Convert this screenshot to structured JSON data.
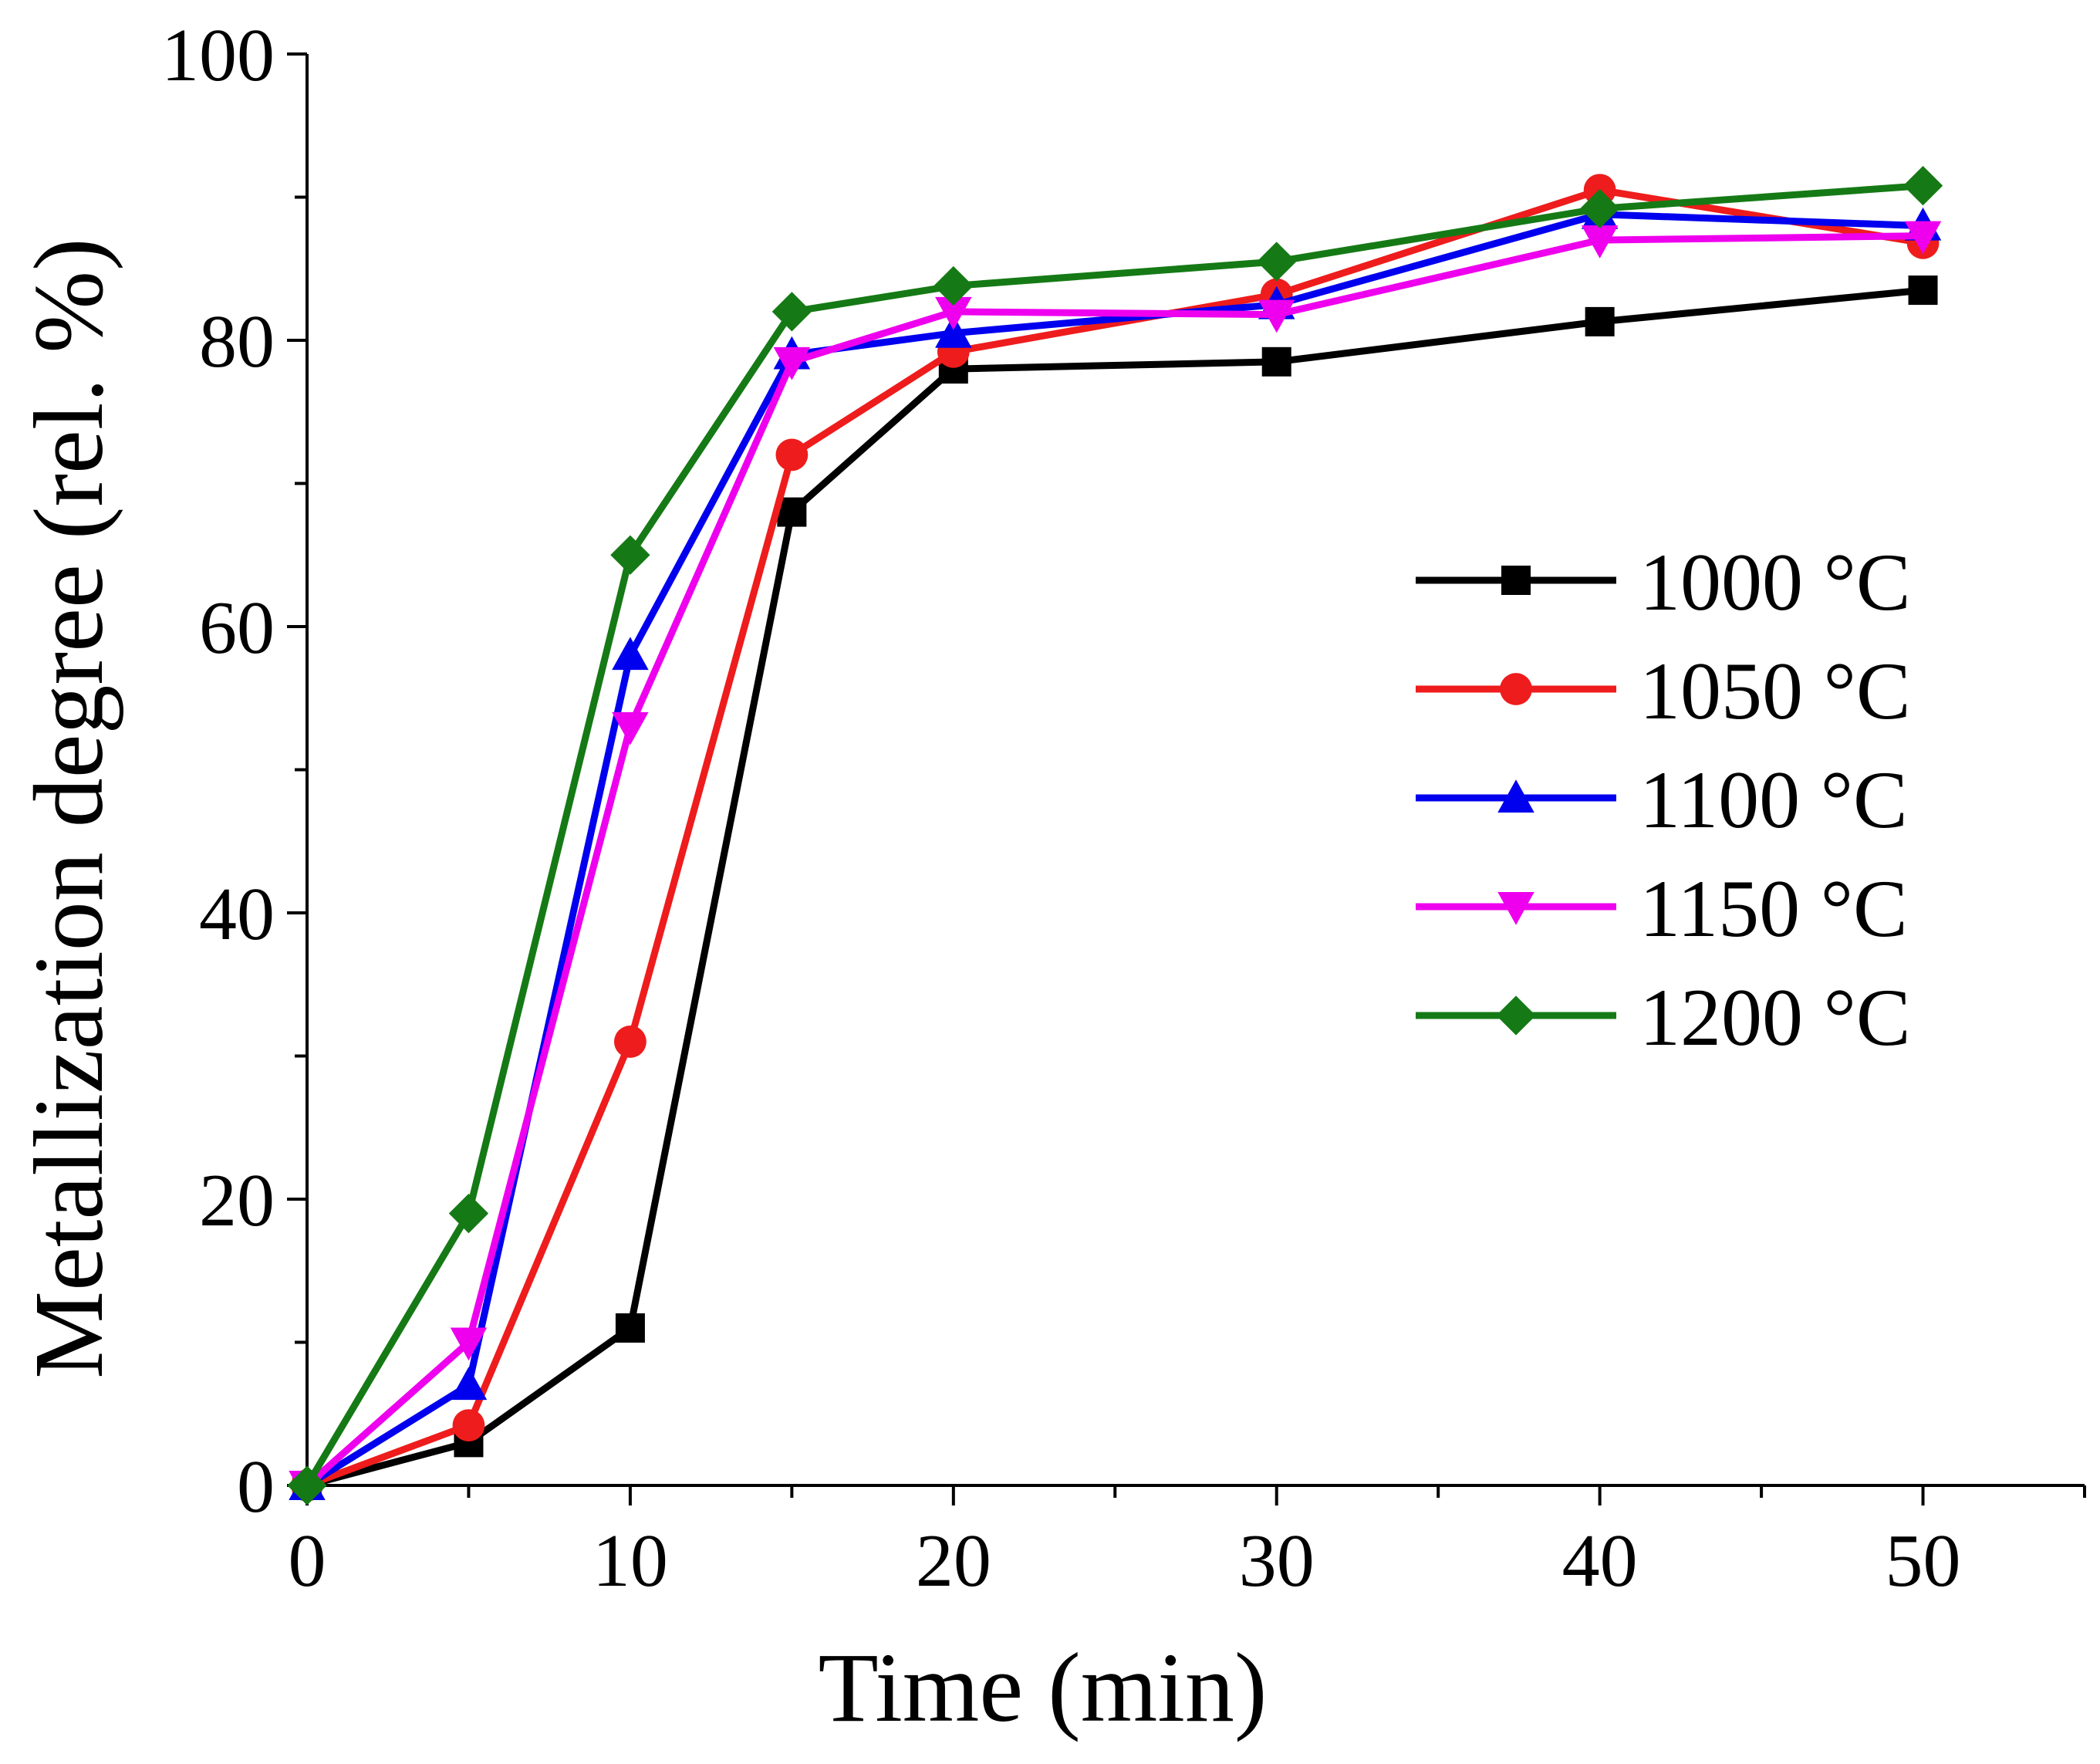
{
  "chart_data": {
    "type": "line",
    "title": "",
    "xlabel": "Time (min)",
    "ylabel": "Metallization degree (rel. %)",
    "xlim": [
      0,
      55
    ],
    "ylim": [
      0,
      100
    ],
    "x_ticks": [
      0,
      10,
      20,
      30,
      40,
      50
    ],
    "y_ticks": [
      0,
      20,
      40,
      60,
      80,
      100
    ],
    "grid": false,
    "legend_position": "right",
    "x": [
      0,
      5,
      10,
      15,
      20,
      30,
      40,
      50
    ],
    "series": [
      {
        "name": "1000 °C",
        "color": "#000000",
        "marker": "square",
        "values": [
          0,
          3,
          11,
          68,
          78,
          78.5,
          81.3,
          83.5
        ]
      },
      {
        "name": "1050 °C",
        "color": "#ee1c1c",
        "marker": "circle",
        "values": [
          0,
          4.2,
          31,
          72,
          79.2,
          83.2,
          90.5,
          86.8
        ]
      },
      {
        "name": "1100 °C",
        "color": "#0000ee",
        "marker": "triangle-up",
        "values": [
          0,
          7,
          58,
          79,
          80.5,
          82.5,
          88.8,
          88
        ]
      },
      {
        "name": "1150 °C",
        "color": "#ee00ee",
        "marker": "triangle-down",
        "values": [
          0,
          10,
          53,
          78.5,
          82,
          81.8,
          87,
          87.3
        ]
      },
      {
        "name": "1200 °C",
        "color": "#157a15",
        "marker": "diamond",
        "values": [
          0,
          19,
          65,
          82,
          83.8,
          85.5,
          89.2,
          90.8
        ]
      }
    ]
  }
}
